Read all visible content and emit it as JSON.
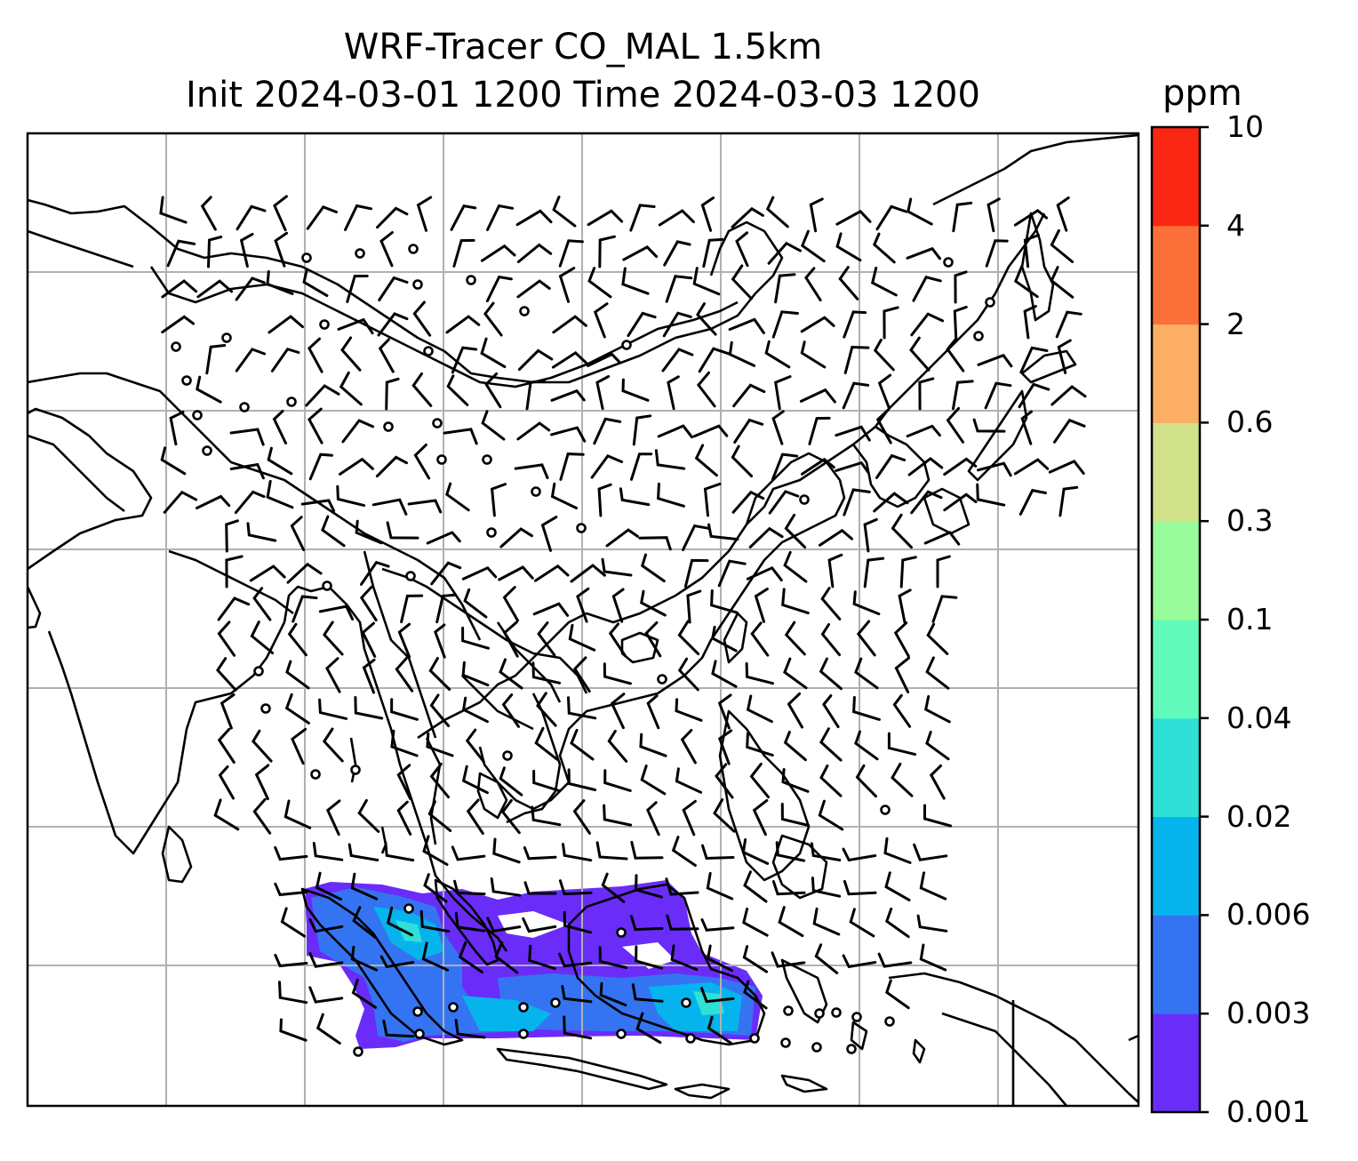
{
  "title": {
    "line1": "WRF-Tracer CO_MAL 1.5km",
    "line2": "Init 2024-03-01 1200 Time 2024-03-03 1200"
  },
  "colorbar": {
    "units": "ppm",
    "levels": [
      "0.001",
      "0.003",
      "0.006",
      "0.02",
      "0.04",
      "0.1",
      "0.3",
      "0.6",
      "2",
      "4",
      "10"
    ],
    "colors": [
      "#6a2cf9",
      "#3474f3",
      "#05b4ec",
      "#2fe0d6",
      "#63fbbc",
      "#97fb99",
      "#d1e189",
      "#fbae64",
      "#fb7038",
      "#fb2715"
    ]
  },
  "map": {
    "gridline_color": "#b0b0b0",
    "coastline_color": "#000000",
    "wind_barb_color": "#000000"
  }
}
